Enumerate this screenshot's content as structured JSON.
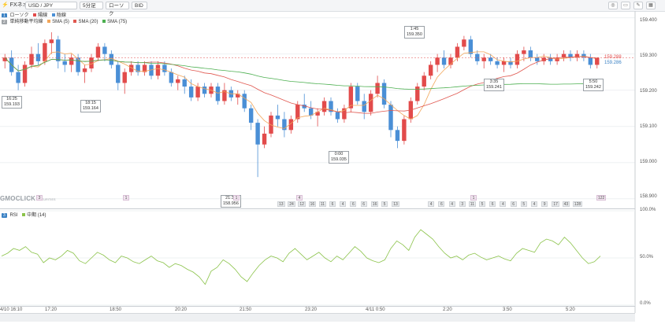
{
  "toolbar": {
    "brand": "FXネオ",
    "symbol": "USD / JPY",
    "interval": "5分足",
    "candle_type": "ローソク",
    "price_type": "BID"
  },
  "main_legend": {
    "panel_badge": "1",
    "series_label": "ローソク",
    "up_label": "陽線",
    "down_label": "陰線",
    "ma_title": "単純移動平均線",
    "sma5": "SMA (5)",
    "sma20": "SMA (20)",
    "sma75": "SMA (75)"
  },
  "rsi_legend": {
    "panel_badge": "3",
    "title": "RSI",
    "line_label": "中期 (14)"
  },
  "colors": {
    "up": "#e24b4b",
    "down": "#4a8fd6",
    "sma5": "#f2a65a",
    "sma20": "#e0574f",
    "sma75": "#4caf50",
    "rsi": "#8bc34a"
  },
  "watermark": {
    "main": "GMOCLICK",
    "sub": "SECURITIES"
  },
  "current_price": {
    "ask": "159.288",
    "bid": "159.286"
  },
  "chart_data": {
    "type": "candlestick",
    "price_axis": {
      "ticks": [
        "159.400",
        "159.300",
        "159.200",
        "159.100",
        "159.000",
        "158.900"
      ],
      "ylim": [
        158.88,
        159.41
      ]
    },
    "rsi_axis": {
      "ticks": [
        "100.0%",
        "50.0%",
        "0.0%"
      ],
      "ylim": [
        0,
        100
      ]
    },
    "time_ticks": [
      "4/10 16:10",
      "17:20",
      "18:50",
      "20:20",
      "21:50",
      "23:20",
      "4/11 0:50",
      "2:20",
      "3:50",
      "5:20"
    ],
    "callouts": [
      {
        "time": "16:25",
        "price": "159.193"
      },
      {
        "time": "18:15",
        "price": "159.164"
      },
      {
        "time": "21:35",
        "price": "158.956"
      },
      {
        "time": "1:45",
        "price": "159.350"
      },
      {
        "time": "0:00",
        "price": "159.035"
      },
      {
        "time": "3:35",
        "price": "159.241"
      },
      {
        "time": "5:50",
        "price": "159.242"
      }
    ],
    "event_markers": [
      "3",
      "1",
      "1",
      "4",
      "1",
      "122"
    ],
    "counts": [
      "13",
      "24",
      "12",
      "16",
      "11",
      "6",
      "4",
      "6",
      "6",
      "16",
      "5",
      "13",
      "4",
      "6",
      "4",
      "3",
      "11",
      "5",
      "6",
      "4",
      "6",
      "5",
      "4",
      "9",
      "17",
      "43",
      "128"
    ],
    "candles": [
      [
        159.28,
        159.3,
        159.26,
        159.29
      ],
      [
        159.29,
        159.31,
        159.24,
        159.25
      ],
      [
        159.25,
        159.27,
        159.2,
        159.22
      ],
      [
        159.22,
        159.28,
        159.21,
        159.27
      ],
      [
        159.27,
        159.32,
        159.26,
        159.3
      ],
      [
        159.3,
        159.33,
        159.27,
        159.28
      ],
      [
        159.28,
        159.34,
        159.27,
        159.33
      ],
      [
        159.33,
        159.36,
        159.3,
        159.34
      ],
      [
        159.34,
        159.35,
        159.26,
        159.28
      ],
      [
        159.28,
        159.3,
        159.25,
        159.27
      ],
      [
        159.27,
        159.3,
        159.25,
        159.29
      ],
      [
        159.29,
        159.3,
        159.24,
        159.25
      ],
      [
        159.25,
        159.27,
        159.22,
        159.26
      ],
      [
        159.26,
        159.3,
        159.25,
        159.29
      ],
      [
        159.29,
        159.33,
        159.28,
        159.32
      ],
      [
        159.32,
        159.33,
        159.28,
        159.3
      ],
      [
        159.3,
        159.31,
        159.26,
        159.27
      ],
      [
        159.27,
        159.28,
        159.2,
        159.22
      ],
      [
        159.22,
        159.26,
        159.19,
        159.25
      ],
      [
        159.25,
        159.28,
        159.24,
        159.27
      ],
      [
        159.27,
        159.28,
        159.24,
        159.25
      ],
      [
        159.25,
        159.28,
        159.24,
        159.27
      ],
      [
        159.27,
        159.28,
        159.23,
        159.24
      ],
      [
        159.24,
        159.28,
        159.23,
        159.27
      ],
      [
        159.27,
        159.28,
        159.24,
        159.25
      ],
      [
        159.25,
        159.26,
        159.21,
        159.22
      ],
      [
        159.22,
        159.24,
        159.2,
        159.23
      ],
      [
        159.23,
        159.24,
        159.19,
        159.21
      ],
      [
        159.21,
        159.23,
        159.17,
        159.18
      ],
      [
        159.18,
        159.22,
        159.17,
        159.21
      ],
      [
        159.21,
        159.22,
        159.18,
        159.19
      ],
      [
        159.19,
        159.22,
        159.18,
        159.21
      ],
      [
        159.21,
        159.22,
        159.16,
        159.17
      ],
      [
        159.17,
        159.22,
        159.16,
        159.2
      ],
      [
        159.2,
        159.21,
        159.17,
        159.18
      ],
      [
        159.18,
        159.2,
        159.16,
        159.19
      ],
      [
        159.19,
        159.2,
        159.14,
        159.15
      ],
      [
        159.15,
        159.16,
        159.09,
        159.11
      ],
      [
        159.11,
        159.12,
        158.96,
        159.05
      ],
      [
        159.05,
        159.1,
        159.04,
        159.08
      ],
      [
        159.08,
        159.14,
        159.07,
        159.13
      ],
      [
        159.13,
        159.16,
        159.1,
        159.12
      ],
      [
        159.12,
        159.14,
        159.07,
        159.09
      ],
      [
        159.09,
        159.13,
        159.08,
        159.12
      ],
      [
        159.12,
        159.17,
        159.11,
        159.16
      ],
      [
        159.16,
        159.19,
        159.14,
        159.15
      ],
      [
        159.15,
        159.17,
        159.12,
        159.13
      ],
      [
        159.13,
        159.15,
        159.1,
        159.14
      ],
      [
        159.14,
        159.18,
        159.13,
        159.17
      ],
      [
        159.17,
        159.18,
        159.13,
        159.14
      ],
      [
        159.14,
        159.15,
        159.11,
        159.12
      ],
      [
        159.12,
        159.16,
        159.11,
        159.15
      ],
      [
        159.15,
        159.22,
        159.14,
        159.21
      ],
      [
        159.21,
        159.22,
        159.16,
        159.17
      ],
      [
        159.17,
        159.19,
        159.12,
        159.14
      ],
      [
        159.14,
        159.2,
        159.13,
        159.19
      ],
      [
        159.19,
        159.24,
        159.18,
        159.22
      ],
      [
        159.22,
        159.23,
        159.15,
        159.16
      ],
      [
        159.16,
        159.17,
        159.07,
        159.09
      ],
      [
        159.09,
        159.1,
        159.04,
        159.06
      ],
      [
        159.06,
        159.13,
        159.05,
        159.12
      ],
      [
        159.12,
        159.18,
        159.11,
        159.17
      ],
      [
        159.17,
        159.22,
        159.16,
        159.21
      ],
      [
        159.21,
        159.25,
        159.2,
        159.24
      ],
      [
        159.24,
        159.28,
        159.23,
        159.27
      ],
      [
        159.27,
        159.3,
        159.25,
        159.29
      ],
      [
        159.29,
        159.31,
        159.26,
        159.27
      ],
      [
        159.27,
        159.3,
        159.26,
        159.29
      ],
      [
        159.29,
        159.33,
        159.28,
        159.32
      ],
      [
        159.32,
        159.35,
        159.31,
        159.34
      ],
      [
        159.34,
        159.35,
        159.29,
        159.3
      ],
      [
        159.3,
        159.31,
        159.27,
        159.28
      ],
      [
        159.28,
        159.3,
        159.26,
        159.29
      ],
      [
        159.29,
        159.3,
        159.27,
        159.28
      ],
      [
        159.28,
        159.29,
        159.26,
        159.27
      ],
      [
        159.27,
        159.29,
        159.25,
        159.28
      ],
      [
        159.28,
        159.29,
        159.26,
        159.27
      ],
      [
        159.27,
        159.31,
        159.26,
        159.3
      ],
      [
        159.3,
        159.32,
        159.28,
        159.31
      ],
      [
        159.31,
        159.32,
        159.28,
        159.29
      ],
      [
        159.29,
        159.3,
        159.27,
        159.28
      ],
      [
        159.28,
        159.3,
        159.27,
        159.29
      ],
      [
        159.29,
        159.3,
        159.27,
        159.28
      ],
      [
        159.28,
        159.3,
        159.27,
        159.29
      ],
      [
        159.29,
        159.31,
        159.28,
        159.3
      ],
      [
        159.3,
        159.31,
        159.28,
        159.29
      ],
      [
        159.29,
        159.31,
        159.28,
        159.3
      ],
      [
        159.3,
        159.31,
        159.28,
        159.29
      ],
      [
        159.29,
        159.3,
        159.26,
        159.27
      ],
      [
        159.27,
        159.29,
        159.26,
        159.29
      ]
    ],
    "rsi": [
      52,
      55,
      60,
      58,
      62,
      56,
      54,
      45,
      50,
      48,
      52,
      58,
      55,
      47,
      44,
      50,
      56,
      53,
      48,
      45,
      52,
      50,
      46,
      44,
      48,
      52,
      47,
      45,
      40,
      44,
      42,
      38,
      35,
      30,
      22,
      36,
      40,
      48,
      44,
      38,
      30,
      25,
      34,
      42,
      48,
      52,
      50,
      46,
      55,
      60,
      54,
      48,
      52,
      56,
      50,
      46,
      52,
      48,
      55,
      62,
      57,
      50,
      47,
      45,
      48,
      60,
      68,
      64,
      58,
      72,
      80,
      75,
      70,
      62,
      55,
      50,
      52,
      48,
      53,
      55,
      51,
      48,
      50,
      52,
      49,
      47,
      55,
      60,
      58,
      56,
      66,
      70,
      68,
      64,
      72,
      66,
      58,
      50,
      44,
      46,
      52
    ]
  }
}
